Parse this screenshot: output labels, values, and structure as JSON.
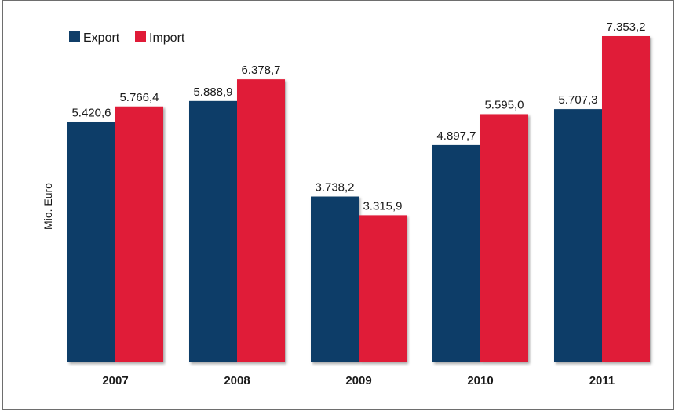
{
  "chart_data": {
    "type": "bar",
    "title": "",
    "xlabel": "",
    "ylabel": "Mio. Euro",
    "categories": [
      "2007",
      "2008",
      "2009",
      "2010",
      "2011"
    ],
    "series": [
      {
        "name": "Export",
        "color": "#103e68",
        "values": [
          5420.6,
          5888.9,
          3738.2,
          4897.7,
          5707.3
        ],
        "labels": [
          "5.420,6",
          "5.888,9",
          "3.738,2",
          "4.897,7",
          "5.707,3"
        ]
      },
      {
        "name": "Import",
        "color": "#e01a37",
        "values": [
          5766.4,
          6378.7,
          3315.9,
          5595.0,
          7353.2
        ],
        "labels": [
          "5.766,4",
          "6.378,7",
          "3.315,9",
          "5.595,0",
          "7.353,2"
        ]
      }
    ],
    "ylim": [
      0,
      7353.2
    ],
    "grid": false,
    "legend": "top-left",
    "y_ticks_shown": false
  }
}
